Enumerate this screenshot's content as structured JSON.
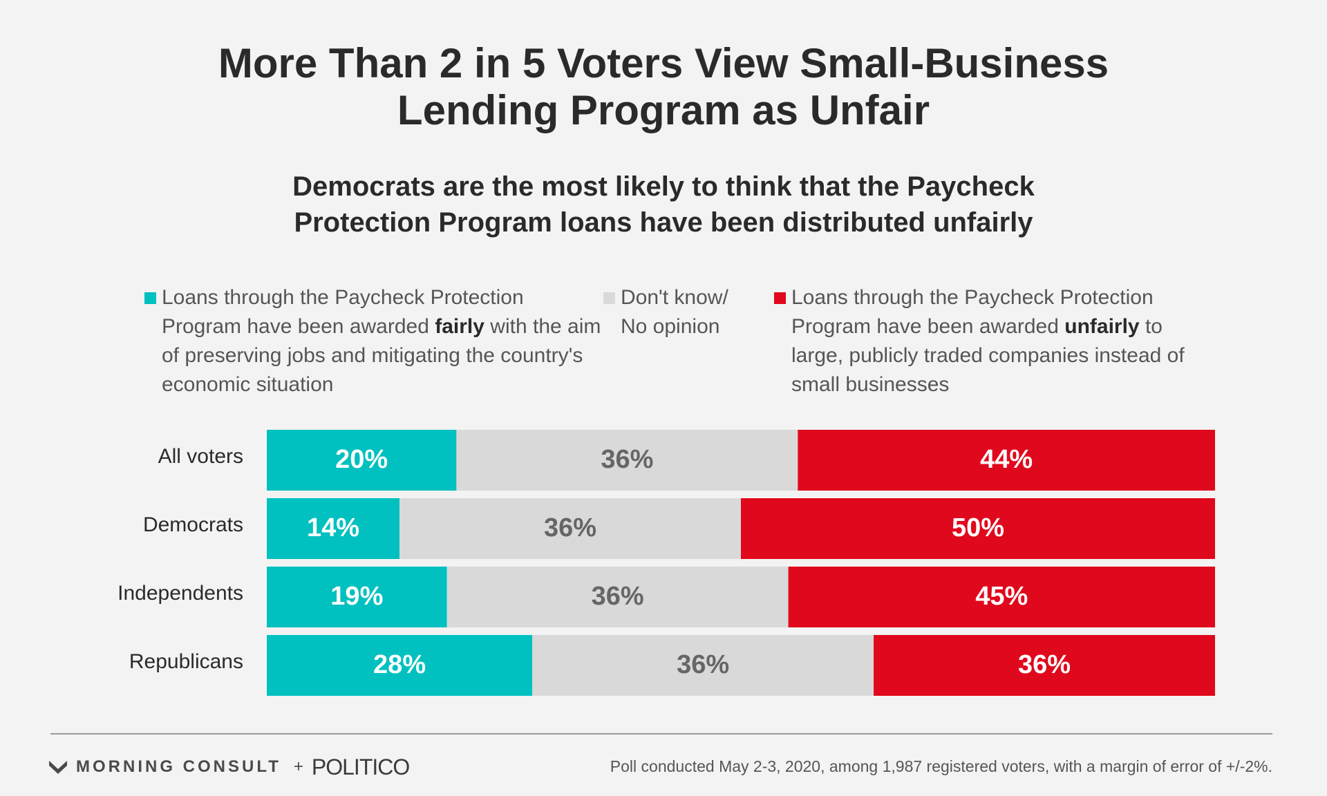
{
  "title_line1": "More Than 2 in 5 Voters View Small-Business",
  "title_line2": "Lending Program as Unfair",
  "subtitle_line1": "Democrats are the most likely to think that the Paycheck",
  "subtitle_line2": "Protection Program loans have been distributed unfairly",
  "legend": {
    "fair": {
      "pre": "Loans through the Paycheck Protection Program have been awarded ",
      "bold": "fairly",
      "post": " with the aim of preserving jobs and mitigating the country's economic situation",
      "color": "#00c0c0"
    },
    "dk": {
      "line1": "Don't know/",
      "line2": "No opinion",
      "color": "#d9d9d9"
    },
    "unfair": {
      "pre": "Loans through the Paycheck Protection Program have been awarded ",
      "bold": "unfairly",
      "post": " to large, publicly traded companies instead of small businesses",
      "color": "#e0081c"
    }
  },
  "chart_data": {
    "type": "bar",
    "orientation": "horizontal",
    "stacked": true,
    "unit": "%",
    "categories": [
      "All voters",
      "Democrats",
      "Independents",
      "Republicans"
    ],
    "series": [
      {
        "name": "Fairly",
        "color": "#00c0c0",
        "label_color": "#ffffff",
        "values": [
          20,
          14,
          19,
          28
        ]
      },
      {
        "name": "Don't know/No opinion",
        "color": "#d9d9d9",
        "label_color": "#666666",
        "values": [
          36,
          36,
          36,
          36
        ]
      },
      {
        "name": "Unfairly",
        "color": "#e0081c",
        "label_color": "#ffffff",
        "values": [
          44,
          50,
          45,
          36
        ]
      }
    ],
    "xlim": [
      0,
      100
    ]
  },
  "footer": {
    "brand": "MORNING CONSULT",
    "plus": "+",
    "partner": "POLITICO",
    "source": "Poll conducted May 2-3, 2020, among 1,987 registered voters, with a margin of error of +/-2%."
  }
}
